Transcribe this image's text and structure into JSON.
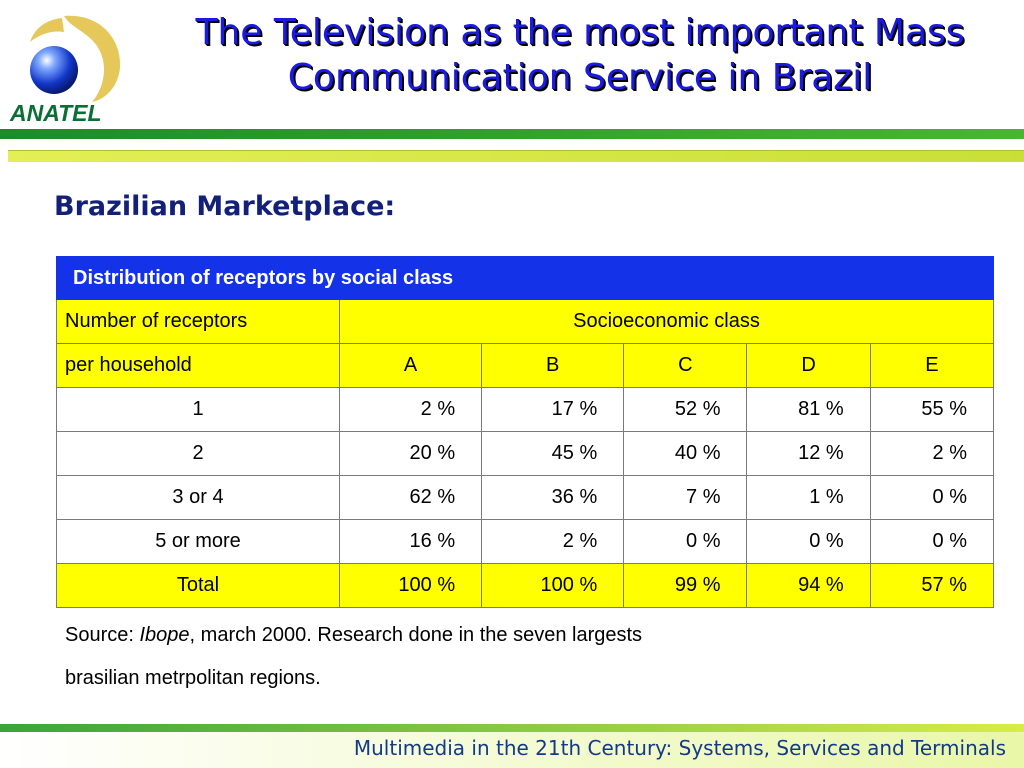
{
  "logo": {
    "text": "ANATEL"
  },
  "title": {
    "line1": "The Television as the most important Mass",
    "line2": "Communication Service in Brazil"
  },
  "subtitle": "Brazilian Marketplace:",
  "table": {
    "caption": "Distribution of receptors by social class",
    "row_header_line1": "Number of  receptors",
    "row_header_line2": "per household",
    "group_header": "Socioeconomic class",
    "columns": [
      "A",
      "B",
      "C",
      "D",
      "E"
    ],
    "rows": [
      {
        "label": "1",
        "values": [
          "2 %",
          "17 %",
          "52 %",
          "81 %",
          "55 %"
        ]
      },
      {
        "label": "2",
        "values": [
          "20 %",
          "45 %",
          "40 %",
          "12 %",
          "2 %"
        ]
      },
      {
        "label": "3 or 4",
        "values": [
          "62 %",
          "36 %",
          "7 %",
          "1 %",
          "0 %"
        ]
      },
      {
        "label": "5 or more",
        "values": [
          "16 %",
          "2 %",
          "0 %",
          "0 %",
          "0 %"
        ]
      }
    ],
    "total": {
      "label": "Total",
      "values": [
        "100 %",
        "100 %",
        "99 %",
        "94 %",
        "57 %"
      ]
    }
  },
  "source": {
    "prefix": "Source: ",
    "name": "Ibope",
    "rest": ", march  2000. Research done in the seven largests",
    "line2": "brasilian metrpolitan regions."
  },
  "footer": {
    "text": "Multimedia in the 21th Century: Systems, Services and Terminals"
  },
  "colors": {
    "title": "#1a1ae0",
    "header_bg": "#1432e8",
    "highlight": "#ffff00",
    "subtitle": "#13207a",
    "logo_green": "#0a6e35"
  }
}
